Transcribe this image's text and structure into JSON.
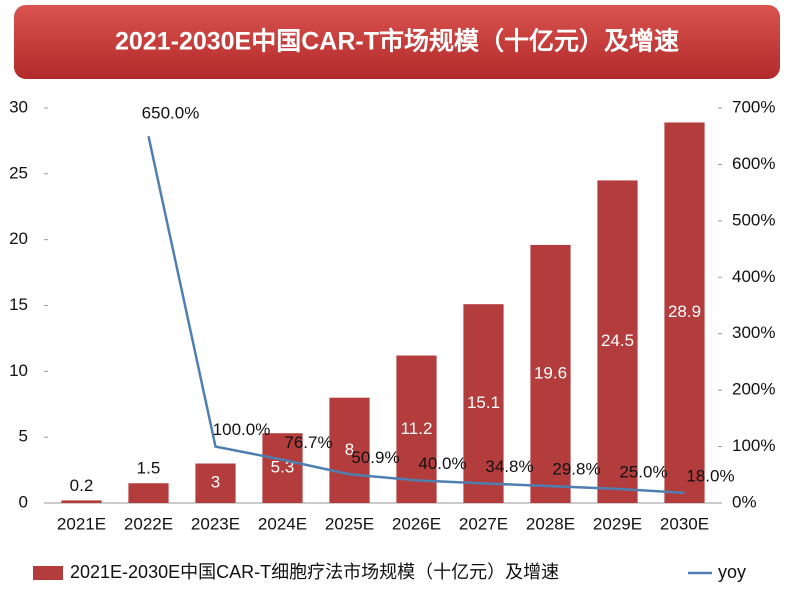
{
  "chart_data": {
    "type": "bar+line",
    "title": "2021-2030E中国CAR-T市场规模（十亿元）及增速",
    "categories": [
      "2021E",
      "2022E",
      "2023E",
      "2024E",
      "2025E",
      "2026E",
      "2027E",
      "2028E",
      "2029E",
      "2030E"
    ],
    "series": [
      {
        "name": "2021E-2030E中国CAR-T细胞疗法市场规模（十亿元）及增速",
        "type": "bar",
        "color": "#b33c3c",
        "values": [
          0.2,
          1.5,
          3.0,
          5.3,
          8.0,
          11.2,
          15.1,
          19.6,
          24.5,
          28.9
        ]
      },
      {
        "name": "yoy",
        "type": "line",
        "axis": "y2",
        "color": "#4f7fb0",
        "values": [
          null,
          650.0,
          100.0,
          76.7,
          50.9,
          40.0,
          34.8,
          29.8,
          25.0,
          18.0
        ],
        "value_labels": [
          null,
          "650.0%",
          "100.0%",
          "76.7%",
          "50.9%",
          "40.0%",
          "34.8%",
          "29.8%",
          "25.0%",
          "18.0%"
        ]
      }
    ],
    "ylim": [
      0,
      30
    ],
    "yticks": [
      0,
      5,
      10,
      15,
      20,
      25,
      30
    ],
    "y2lim": [
      0,
      700
    ],
    "y2ticks": [
      {
        "value": 0,
        "label": "0%"
      },
      {
        "value": 100,
        "label": "100%"
      },
      {
        "value": 200,
        "label": "200%"
      },
      {
        "value": 300,
        "label": "300%"
      },
      {
        "value": 400,
        "label": "400%"
      },
      {
        "value": 500,
        "label": "500%"
      },
      {
        "value": 600,
        "label": "600%"
      },
      {
        "value": 700,
        "label": "700%"
      }
    ],
    "legend": "bottom"
  }
}
